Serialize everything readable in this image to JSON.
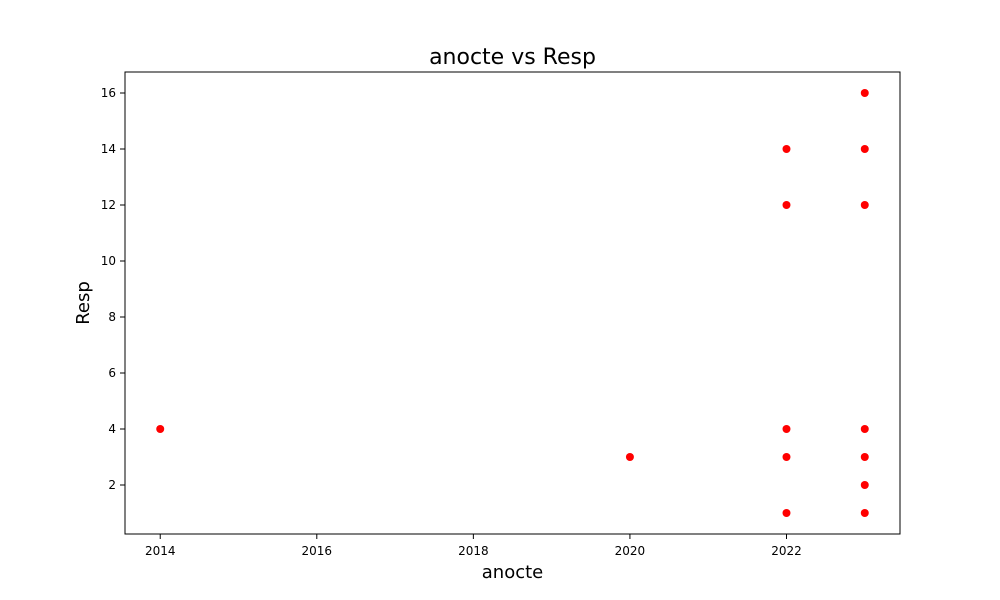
{
  "chart_data": {
    "type": "scatter",
    "title": "anocte vs Resp",
    "xlabel": "anocte",
    "ylabel": "Resp",
    "xlim": [
      2013.55,
      2023.45
    ],
    "ylim": [
      0.25,
      16.75
    ],
    "xticks": [
      2014,
      2016,
      2018,
      2020,
      2022
    ],
    "yticks": [
      2,
      4,
      6,
      8,
      10,
      12,
      14,
      16
    ],
    "grid": false,
    "marker_color": "#ff0000",
    "points": [
      {
        "x": 2014,
        "y": 4
      },
      {
        "x": 2020,
        "y": 3
      },
      {
        "x": 2022,
        "y": 14
      },
      {
        "x": 2022,
        "y": 12
      },
      {
        "x": 2022,
        "y": 4
      },
      {
        "x": 2022,
        "y": 3
      },
      {
        "x": 2022,
        "y": 1
      },
      {
        "x": 2023,
        "y": 16
      },
      {
        "x": 2023,
        "y": 14
      },
      {
        "x": 2023,
        "y": 12
      },
      {
        "x": 2023,
        "y": 4
      },
      {
        "x": 2023,
        "y": 3
      },
      {
        "x": 2023,
        "y": 2
      },
      {
        "x": 2023,
        "y": 1
      }
    ]
  }
}
